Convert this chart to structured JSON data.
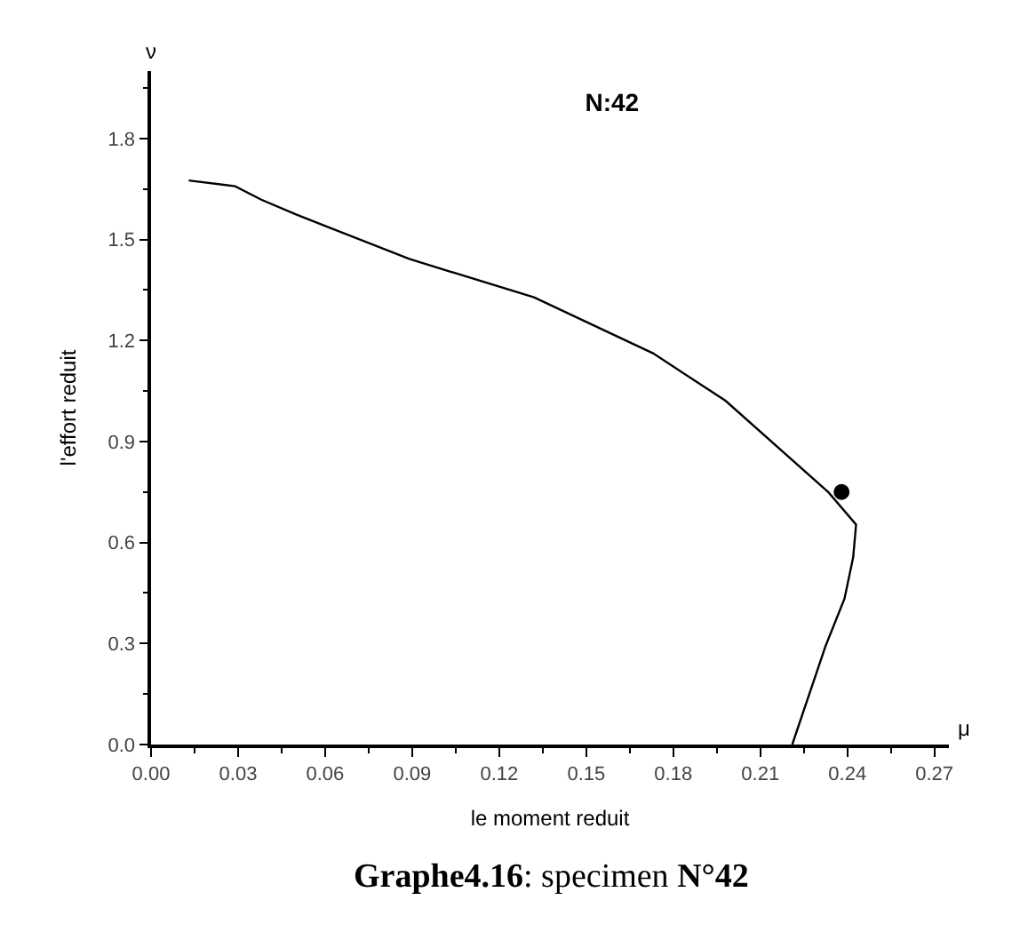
{
  "chart_data": {
    "type": "line",
    "title": "N:42",
    "xlabel": "le moment reduit",
    "ylabel": "l'effort reduit",
    "annotations": [
      "ν",
      "μ",
      "Graphe4.16: specimen N°42"
    ],
    "series": [
      {
        "color": "#000000",
        "marker": "none",
        "x": [
          0.013,
          0.029,
          0.038,
          0.05,
          0.089,
          0.132,
          0.173,
          0.198,
          0.2335,
          0.243,
          0.242,
          0.239,
          0.2325,
          0.221
        ],
        "values": [
          1.675,
          1.658,
          1.618,
          1.574,
          1.442,
          1.328,
          1.162,
          1.021,
          0.749,
          0.653,
          0.556,
          0.433,
          0.293,
          0.0
        ]
      },
      {
        "type": "scatter",
        "color": "#000000",
        "marker": "circle",
        "x": [
          0.238
        ],
        "values": [
          0.75
        ]
      }
    ],
    "xlim": [
      0,
      0.275
    ],
    "ylim": [
      0,
      2.0
    ],
    "xticks": [
      {
        "value": 0,
        "label": "0.00"
      },
      0.03,
      0.06,
      0.09,
      0.12,
      0.15,
      0.18,
      0.21,
      0.24,
      0.27
    ],
    "yticks": [
      {
        "value": 0,
        "label": "0.0"
      },
      0.3,
      0.6,
      0.9,
      1.2,
      1.5,
      1.8
    ]
  }
}
